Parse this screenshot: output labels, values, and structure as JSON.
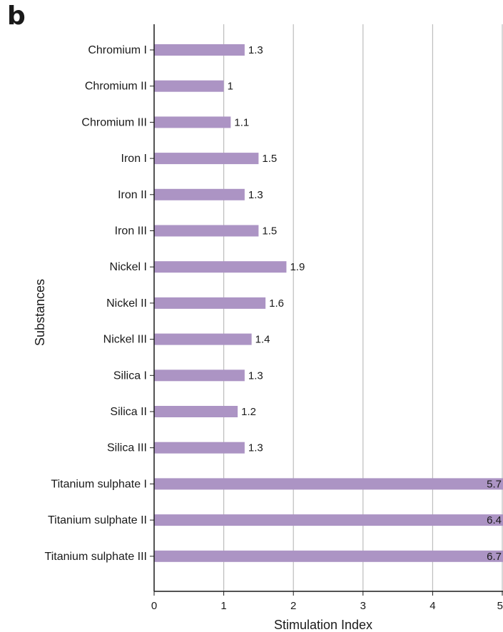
{
  "panel_label": "b",
  "chart_data": {
    "type": "bar",
    "orientation": "horizontal",
    "categories": [
      "Chromium I",
      "Chromium II",
      "Chromium III",
      "Iron I",
      "Iron II",
      "Iron III",
      "Nickel I",
      "Nickel II",
      "Nickel III",
      "Silica I",
      "Silica II",
      "Silica III",
      "Titanium sulphate I",
      "Titanium sulphate II",
      "Titanium sulphate III"
    ],
    "values": [
      1.3,
      1,
      1.1,
      1.5,
      1.3,
      1.5,
      1.9,
      1.6,
      1.4,
      1.3,
      1.2,
      1.3,
      5.7,
      6.4,
      6.7
    ],
    "value_labels": [
      "1.3",
      "1",
      "1.1",
      "1.5",
      "1.3",
      "1.5",
      "1.9",
      "1.6",
      "1.4",
      "1.3",
      "1.2",
      "1.3",
      "5.7",
      "6.4",
      "6.7"
    ],
    "xlabel": "Stimulation Index",
    "ylabel": "Substances",
    "xlim": [
      0,
      5
    ],
    "xticks": [
      "0",
      "1",
      "2",
      "3",
      "4",
      "5"
    ],
    "grid": "vertical",
    "bar_color": "#ac94c4"
  }
}
